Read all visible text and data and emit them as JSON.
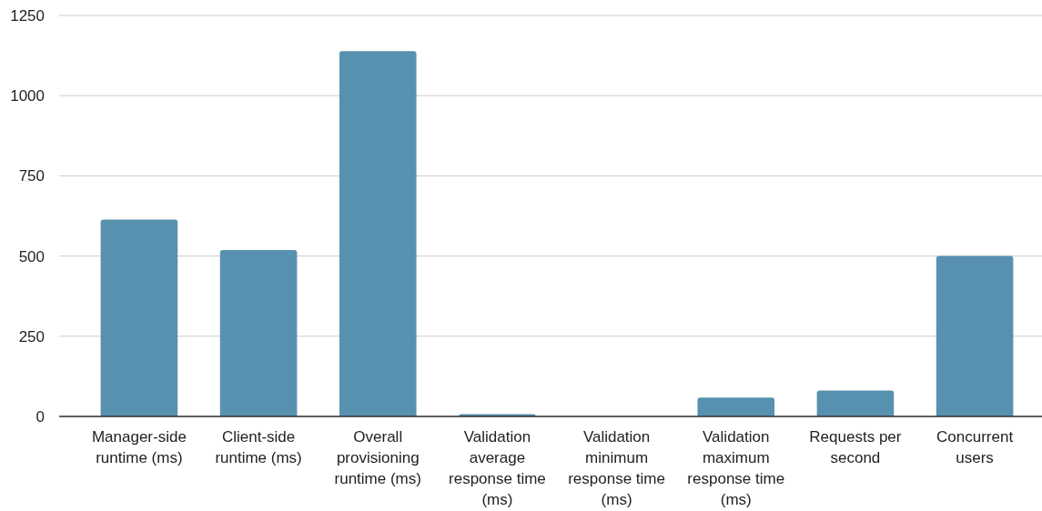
{
  "chart_data": {
    "type": "bar",
    "categories": [
      "Manager-side runtime (ms)",
      "Client-side runtime (ms)",
      "Overall provisioning runtime (ms)",
      "Validation average response time (ms)",
      "Validation minimum response time (ms)",
      "Validation maximum response time (ms)",
      "Requests per second",
      "Concurrent users"
    ],
    "values": [
      614,
      519,
      1139,
      7,
      0,
      59,
      81,
      500
    ],
    "color": "#5891af",
    "ylim": [
      0,
      1250
    ],
    "yticks": [
      0,
      250,
      500,
      750,
      1000,
      1250
    ],
    "grid": "y"
  }
}
